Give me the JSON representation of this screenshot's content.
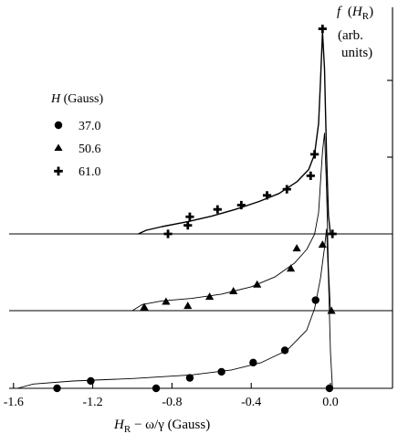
{
  "chart_data": {
    "type": "scatter",
    "xlabel": "H_R − ω/γ (Gauss)",
    "xlabel_parts": {
      "main": "H",
      "sub": "R",
      "rest": " − ω/γ  (Gauss)"
    },
    "ylabel_parts": {
      "f": "f",
      "H": "H",
      "sub": "R",
      "line2": "(arb.",
      "line3": "units)"
    },
    "xlim": [
      -1.6,
      0.35
    ],
    "x_ticks": [
      -1.6,
      -1.2,
      -0.8,
      -0.4,
      0.0
    ],
    "x_tick_labels": [
      "-1.6",
      "-1.2",
      "-0.8",
      "-0.4",
      "0.0"
    ],
    "legend": {
      "title_var": "H",
      "title_unit": " (Gauss)",
      "placement": "left",
      "entries": [
        {
          "label": "37.0",
          "marker": "circle"
        },
        {
          "label": "50.6",
          "marker": "triangle"
        },
        {
          "label": "61.0",
          "marker": "cross"
        }
      ]
    },
    "series": [
      {
        "name": "37.0",
        "marker": "circle",
        "points": [
          [
            -1.38,
            0.0
          ],
          [
            -1.21,
            0.12
          ],
          [
            -0.88,
            0.0
          ],
          [
            -0.71,
            0.17
          ],
          [
            -0.55,
            0.27
          ],
          [
            -0.39,
            0.42
          ],
          [
            -0.23,
            0.62
          ],
          [
            -0.075,
            1.44
          ],
          [
            -0.005,
            0.0
          ]
        ],
        "fit": [
          [
            -1.58,
            0.0
          ],
          [
            -1.5,
            0.07
          ],
          [
            -1.3,
            0.12
          ],
          [
            -1.0,
            0.16
          ],
          [
            -0.7,
            0.22
          ],
          [
            -0.5,
            0.3
          ],
          [
            -0.35,
            0.42
          ],
          [
            -0.22,
            0.62
          ],
          [
            -0.12,
            0.95
          ],
          [
            -0.08,
            1.3
          ],
          [
            -0.05,
            1.8
          ],
          [
            -0.03,
            2.3
          ],
          [
            -0.02,
            2.6
          ],
          [
            -0.01,
            1.8
          ],
          [
            0.0,
            0.6
          ],
          [
            0.01,
            0.0
          ]
        ]
      },
      {
        "name": "50.6",
        "marker": "triangle",
        "points": [
          [
            -0.94,
            0.06
          ],
          [
            -0.83,
            0.15
          ],
          [
            -0.72,
            0.08
          ],
          [
            -0.61,
            0.23
          ],
          [
            -0.49,
            0.32
          ],
          [
            -0.37,
            0.43
          ],
          [
            -0.2,
            0.69
          ],
          [
            -0.17,
            1.02
          ],
          [
            -0.04,
            1.08
          ],
          [
            0.005,
            0.0
          ]
        ],
        "fit": [
          [
            -1.0,
            0.0
          ],
          [
            -0.95,
            0.1
          ],
          [
            -0.85,
            0.16
          ],
          [
            -0.7,
            0.2
          ],
          [
            -0.55,
            0.27
          ],
          [
            -0.4,
            0.39
          ],
          [
            -0.28,
            0.55
          ],
          [
            -0.18,
            0.78
          ],
          [
            -0.12,
            1.0
          ],
          [
            -0.08,
            1.25
          ],
          [
            -0.06,
            1.6
          ],
          [
            -0.05,
            2.1
          ],
          [
            -0.04,
            2.6
          ],
          [
            -0.03,
            2.9
          ],
          [
            -0.02,
            2.0
          ],
          [
            -0.01,
            0.7
          ],
          [
            0.0,
            0.0
          ]
        ]
      },
      {
        "name": "61.0",
        "marker": "cross",
        "points": [
          [
            -0.82,
            0.0
          ],
          [
            -0.71,
            0.28
          ],
          [
            -0.72,
            0.14
          ],
          [
            -0.57,
            0.4
          ],
          [
            -0.45,
            0.47
          ],
          [
            -0.32,
            0.63
          ],
          [
            -0.22,
            0.73
          ],
          [
            -0.08,
            1.3
          ],
          [
            -0.04,
            3.35
          ],
          [
            -0.1,
            0.95
          ],
          [
            0.01,
            0.0
          ]
        ],
        "fit": [
          [
            -0.97,
            0.0
          ],
          [
            -0.93,
            0.06
          ],
          [
            -0.85,
            0.12
          ],
          [
            -0.72,
            0.2
          ],
          [
            -0.6,
            0.29
          ],
          [
            -0.48,
            0.4
          ],
          [
            -0.36,
            0.53
          ],
          [
            -0.26,
            0.66
          ],
          [
            -0.17,
            0.85
          ],
          [
            -0.11,
            1.05
          ],
          [
            -0.08,
            1.3
          ],
          [
            -0.06,
            1.8
          ],
          [
            -0.05,
            2.5
          ],
          [
            -0.04,
            3.3
          ],
          [
            -0.03,
            2.7
          ],
          [
            -0.02,
            1.3
          ],
          [
            -0.01,
            0.3
          ],
          [
            0.0,
            0.0
          ]
        ]
      }
    ]
  }
}
